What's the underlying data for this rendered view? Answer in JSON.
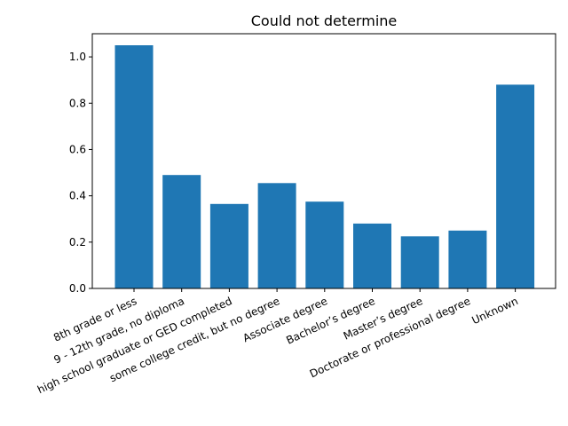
{
  "chart_data": {
    "type": "bar",
    "title": "Could not determine",
    "xlabel": "",
    "ylabel": "",
    "categories": [
      "8th grade or less",
      "9 - 12th grade, no diploma",
      "high school graduate or GED completed",
      "some college credit, but no degree",
      "Associate degree",
      "Bachelor’s degree",
      "Master’s degree",
      "Doctorate or professional degree",
      "Unknown"
    ],
    "values": [
      1.05,
      0.49,
      0.365,
      0.455,
      0.375,
      0.28,
      0.225,
      0.25,
      0.88
    ],
    "ylim": [
      0,
      1.1
    ],
    "yticks": [
      0.0,
      0.2,
      0.4,
      0.6,
      0.8,
      1.0
    ],
    "ytick_labels": [
      "0.0",
      "0.2",
      "0.4",
      "0.6",
      "0.8",
      "1.0"
    ],
    "bar_color": "#1f77b4",
    "grid": false,
    "legend": "none"
  }
}
